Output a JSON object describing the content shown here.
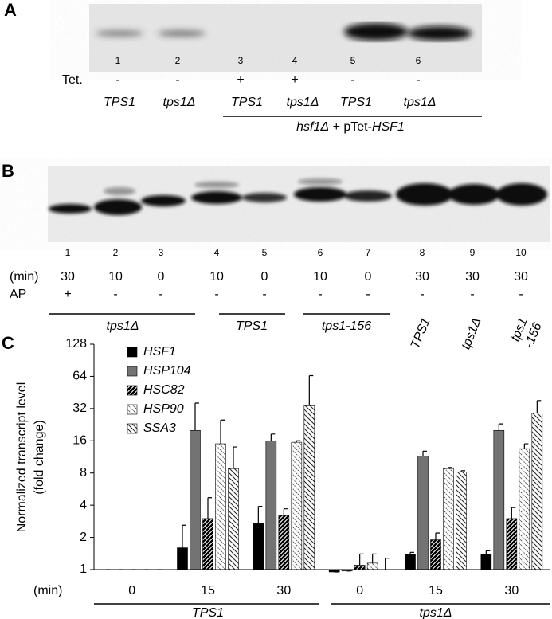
{
  "panel_a": {
    "letter": "A",
    "lanes": [
      "1",
      "2",
      "3",
      "4",
      "5",
      "6"
    ],
    "row_label": "Tet.",
    "tet": [
      "-",
      "-",
      "+",
      "+",
      "-",
      "-"
    ],
    "strains": [
      "TPS1",
      "tps1Δ",
      "TPS1",
      "tps1Δ",
      "TPS1",
      "tps1Δ"
    ],
    "group_label": [
      "hsf1Δ",
      " + pTet-",
      "HSF1"
    ]
  },
  "panel_b": {
    "letter": "B",
    "lanes": [
      "1",
      "2",
      "3",
      "4",
      "5",
      "6",
      "7",
      "8",
      "9",
      "10"
    ],
    "row_labels": [
      "(min)",
      "AP"
    ],
    "min": [
      "30",
      "10",
      "0",
      "10",
      "0",
      "10",
      "0",
      "30",
      "30",
      "30"
    ],
    "ap": [
      "+",
      "-",
      "-",
      "-",
      "-",
      "-",
      "-",
      "-",
      "-",
      "-"
    ],
    "groups": [
      "tps1Δ",
      "TPS1",
      "tps1-156"
    ],
    "strains": [
      [
        "TPS1"
      ],
      [
        "tps1Δ"
      ],
      [
        "tps1",
        "-156"
      ]
    ]
  },
  "chart_data": {
    "type": "bar",
    "letter": "C",
    "y_label": [
      "Normalized transcript level",
      "(fold change)"
    ],
    "x_label": "(min)",
    "categories": [
      "0",
      "15",
      "30",
      "0",
      "15",
      "30"
    ],
    "groups": [
      "TPS1",
      "tps1Δ"
    ],
    "log_scale": true,
    "ylim": [
      1,
      128
    ],
    "yticks": [
      1,
      2,
      4,
      8,
      16,
      32,
      64,
      128
    ],
    "legend": "upper left",
    "series": [
      {
        "name": "HSF1",
        "color": "#000000",
        "hatch": "solid",
        "values": [
          1,
          1.6,
          2.7,
          0.95,
          1.4,
          1.4
        ],
        "errors": [
          0,
          1.0,
          1.2,
          0,
          0.05,
          0.1
        ]
      },
      {
        "name": "HSP104",
        "color": "#737373",
        "hatch": "solid",
        "values": [
          1,
          20,
          16,
          0.97,
          11.5,
          20
        ],
        "errors": [
          0,
          16,
          2.5,
          0,
          1.3,
          3
        ]
      },
      {
        "name": "HSC82",
        "color": "#000000",
        "hatch": "dense",
        "values": [
          1,
          3,
          3.2,
          1.1,
          1.9,
          3
        ],
        "errors": [
          0,
          1.7,
          0.5,
          0.3,
          0.3,
          0.8
        ]
      },
      {
        "name": "HSP90",
        "color": "#555555",
        "hatch": "light",
        "values": [
          1,
          15,
          15.5,
          1.15,
          8.8,
          13.5
        ],
        "errors": [
          0,
          10,
          0.5,
          0.25,
          0.2,
          1.5
        ]
      },
      {
        "name": "SSA3",
        "color": "#222222",
        "hatch": "back",
        "values": [
          1,
          8.8,
          34,
          1.0,
          8.2,
          29
        ],
        "errors": [
          0,
          5.2,
          31,
          0.28,
          0.2,
          9
        ]
      }
    ]
  }
}
